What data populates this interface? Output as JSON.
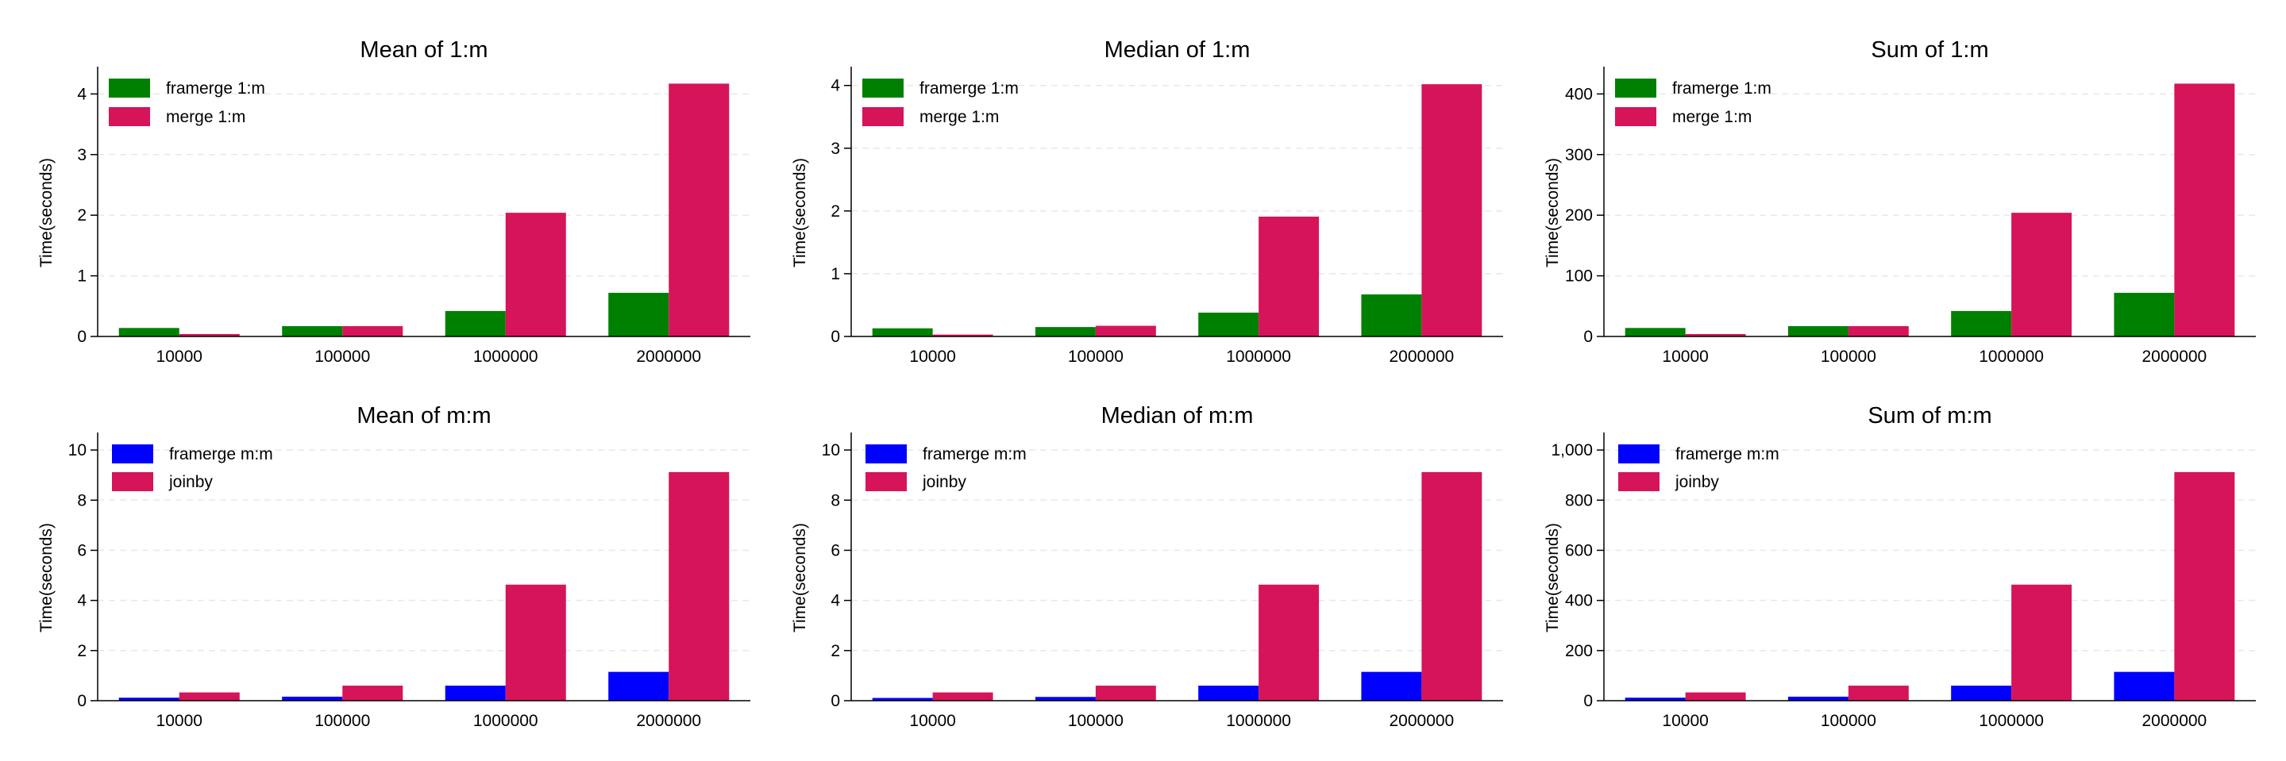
{
  "chart_data": [
    {
      "type": "bar",
      "title": "Mean of 1:m",
      "ylabel": "Time(seconds)",
      "categories": [
        "10000",
        "100000",
        "1000000",
        "2000000"
      ],
      "series": [
        {
          "name": "framerge 1:m",
          "values": [
            0.14,
            0.17,
            0.42,
            0.72
          ]
        },
        {
          "name": "merge 1:m",
          "values": [
            0.04,
            0.17,
            2.04,
            4.17
          ]
        }
      ],
      "ylim": [
        0,
        4.45
      ],
      "yticks": [
        0,
        1,
        2,
        3,
        4
      ],
      "ytick_labels": [
        "0",
        "1",
        "2",
        "3",
        "4"
      ],
      "grid": true,
      "legend": "top-left",
      "colors": [
        "#008000",
        "#d6145a"
      ]
    },
    {
      "type": "bar",
      "title": "Median of 1:m",
      "ylabel": "Time(seconds)",
      "categories": [
        "10000",
        "100000",
        "1000000",
        "2000000"
      ],
      "series": [
        {
          "name": "framerge 1:m",
          "values": [
            0.13,
            0.15,
            0.38,
            0.67
          ]
        },
        {
          "name": "merge 1:m",
          "values": [
            0.03,
            0.17,
            1.91,
            4.02
          ]
        }
      ],
      "ylim": [
        0,
        4.3
      ],
      "yticks": [
        0,
        1,
        2,
        3,
        4
      ],
      "ytick_labels": [
        "0",
        "1",
        "2",
        "3",
        "4"
      ],
      "grid": true,
      "legend": "top-left",
      "colors": [
        "#008000",
        "#d6145a"
      ]
    },
    {
      "type": "bar",
      "title": "Sum of 1:m",
      "ylabel": "Time(seconds)",
      "categories": [
        "10000",
        "100000",
        "1000000",
        "2000000"
      ],
      "series": [
        {
          "name": "framerge 1:m",
          "values": [
            14,
            17,
            42,
            72
          ]
        },
        {
          "name": "merge 1:m",
          "values": [
            4,
            17,
            204,
            417
          ]
        }
      ],
      "ylim": [
        0,
        445
      ],
      "yticks": [
        0,
        100,
        200,
        300,
        400
      ],
      "ytick_labels": [
        "0",
        "100",
        "200",
        "300",
        "400"
      ],
      "grid": true,
      "legend": "top-left",
      "colors": [
        "#008000",
        "#d6145a"
      ]
    },
    {
      "type": "bar",
      "title": "Mean of m:m",
      "ylabel": "Time(seconds)",
      "categories": [
        "10000",
        "100000",
        "1000000",
        "2000000"
      ],
      "series": [
        {
          "name": "framerge m:m",
          "values": [
            0.12,
            0.16,
            0.6,
            1.15
          ]
        },
        {
          "name": "joinby",
          "values": [
            0.33,
            0.6,
            4.63,
            9.12
          ]
        }
      ],
      "ylim": [
        0,
        10.7
      ],
      "yticks": [
        0,
        2,
        4,
        6,
        8,
        10
      ],
      "ytick_labels": [
        "0",
        "2",
        "4",
        "6",
        "8",
        "10"
      ],
      "grid": true,
      "legend": "top-left",
      "colors": [
        "#0000ff",
        "#d6145a"
      ]
    },
    {
      "type": "bar",
      "title": "Median of m:m",
      "ylabel": "Time(seconds)",
      "categories": [
        "10000",
        "100000",
        "1000000",
        "2000000"
      ],
      "series": [
        {
          "name": "framerge m:m",
          "values": [
            0.11,
            0.15,
            0.6,
            1.15
          ]
        },
        {
          "name": "joinby",
          "values": [
            0.33,
            0.6,
            4.63,
            9.12
          ]
        }
      ],
      "ylim": [
        0,
        10.7
      ],
      "yticks": [
        0,
        2,
        4,
        6,
        8,
        10
      ],
      "ytick_labels": [
        "0",
        "2",
        "4",
        "6",
        "8",
        "10"
      ],
      "grid": true,
      "legend": "top-left",
      "colors": [
        "#0000ff",
        "#d6145a"
      ]
    },
    {
      "type": "bar",
      "title": "Sum of m:m",
      "ylabel": "Time(seconds)",
      "categories": [
        "10000",
        "100000",
        "1000000",
        "2000000"
      ],
      "series": [
        {
          "name": "framerge m:m",
          "values": [
            12,
            16,
            60,
            115
          ]
        },
        {
          "name": "joinby",
          "values": [
            33,
            60,
            463,
            912
          ]
        }
      ],
      "ylim": [
        0,
        1070
      ],
      "yticks": [
        0,
        200,
        400,
        600,
        800,
        1000
      ],
      "ytick_labels": [
        "0",
        "200",
        "400",
        "600",
        "800",
        "1,000"
      ],
      "grid": true,
      "legend": "top-left",
      "colors": [
        "#0000ff",
        "#d6145a"
      ]
    }
  ]
}
